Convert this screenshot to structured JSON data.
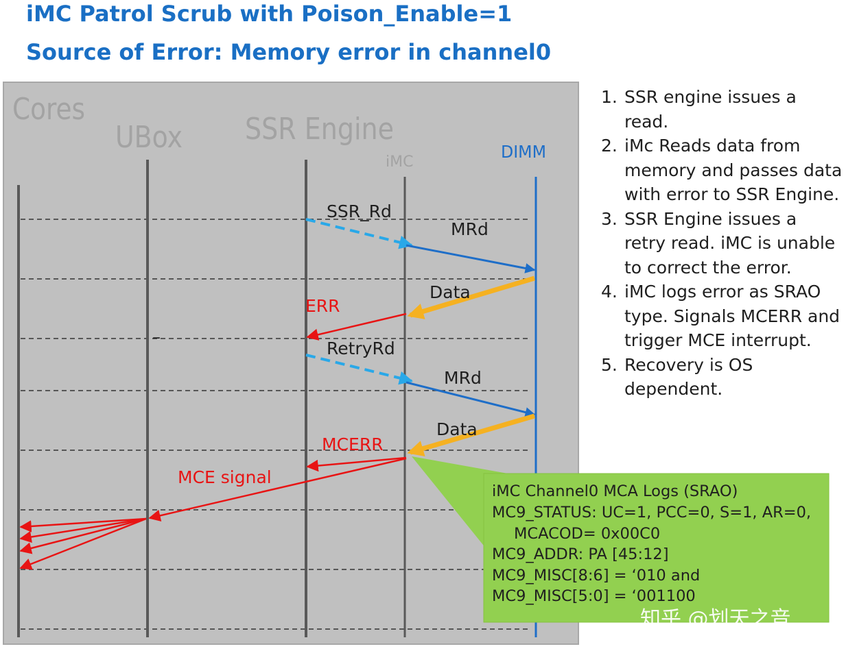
{
  "header": {
    "title_line1": "iMC Patrol Scrub with Poison_Enable=1",
    "title_line2": "Source of Error: Memory error in channel0"
  },
  "diagram": {
    "lifelines": {
      "cores": "Cores",
      "ubox": "UBox",
      "ssr_engine": "SSR Engine",
      "imc": "iMC",
      "dimm": "DIMM"
    },
    "messages": {
      "ssr_rd": "SSR_Rd",
      "mrd_1": "MRd",
      "data_1": "Data",
      "err": "ERR",
      "retry_rd": "RetryRd",
      "mrd_2": "MRd",
      "data_2": "Data",
      "mcerr": "MCERR",
      "mce_signal": "MCE signal",
      "dash_mark": "–"
    },
    "callout": {
      "lines": [
        "iMC Channel0 MCA Logs (SRAO)",
        "MC9_STATUS: UC=1, PCC=0, S=1, AR=0,",
        "MCACOD= 0x00C0",
        "MC9_ADDR: PA [45:12]",
        "MC9_MISC[8:6] = ‘010 and",
        "MC9_MISC[5:0] = ‘001100"
      ]
    },
    "colors": {
      "panel": "#c0c0c0",
      "blue_arrow": "#1e6ec8",
      "dashed_blue": "#29a8e8",
      "data_arrow": "#f5b121",
      "red": "#e81414",
      "callout": "#92d050"
    }
  },
  "steps": [
    {
      "num": "1.",
      "text": "SSR engine issues a read."
    },
    {
      "num": "2.",
      "text": "iMc Reads data from memory and passes data with error to SSR Engine."
    },
    {
      "num": "3.",
      "text": "SSR Engine issues a retry read. iMC is unable to correct the error."
    },
    {
      "num": "4.",
      "text": "iMC logs error as SRAO type. Signals MCERR and trigger MCE interrupt."
    },
    {
      "num": "5.",
      "text": "Recovery is OS dependent."
    }
  ],
  "watermark": "知乎 @划天之音"
}
